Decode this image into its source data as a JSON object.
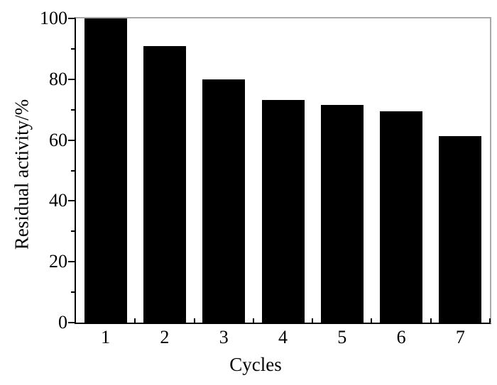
{
  "chart_data": {
    "type": "bar",
    "categories": [
      "1",
      "2",
      "3",
      "4",
      "5",
      "6",
      "7"
    ],
    "values": [
      100,
      91,
      80,
      73.3,
      71.5,
      69.5,
      61.2
    ],
    "title": "",
    "xlabel": "Cycles",
    "ylabel": "Residual activity/%",
    "ylim": [
      0,
      100
    ],
    "y_major_ticks": [
      0,
      20,
      40,
      60,
      80,
      100
    ],
    "y_minor_ticks": [
      10,
      30,
      50,
      70,
      90
    ],
    "x_boundary_ticks": [
      1,
      2,
      3,
      4,
      5,
      6,
      7
    ],
    "grid": false,
    "legend": false,
    "bar_color": "#000000",
    "axis_color": "#000000",
    "frame_color": "#a9a9a9",
    "background_color": "#ffffff"
  }
}
